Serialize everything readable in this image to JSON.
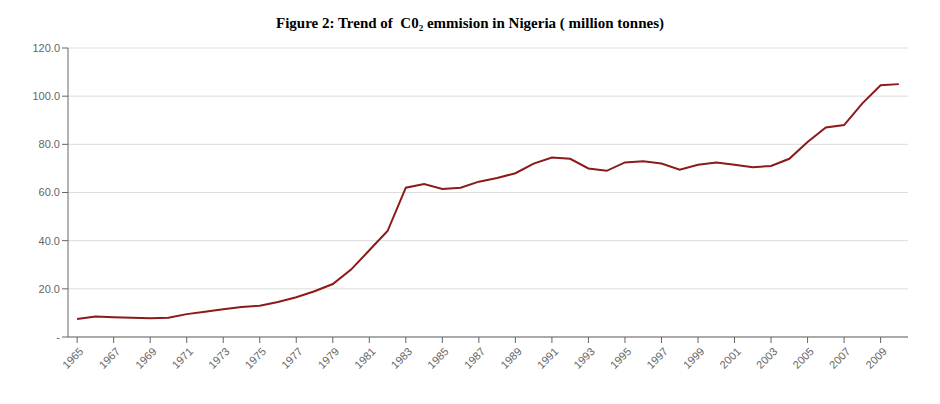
{
  "chart_data": {
    "type": "line",
    "title": "Figure 2: Trend of  C0₂ emmision in Nigeria ( million tonnes)",
    "x": [
      1965,
      1966,
      1967,
      1968,
      1969,
      1970,
      1971,
      1972,
      1973,
      1974,
      1975,
      1976,
      1977,
      1978,
      1979,
      1980,
      1981,
      1982,
      1983,
      1984,
      1985,
      1986,
      1987,
      1988,
      1989,
      1990,
      1991,
      1992,
      1993,
      1994,
      1995,
      1996,
      1997,
      1998,
      1999,
      2000,
      2001,
      2002,
      2003,
      2004,
      2005,
      2006,
      2007,
      2008,
      2009,
      2010
    ],
    "values": [
      7.5,
      8.5,
      8.2,
      8.0,
      7.8,
      8.0,
      9.5,
      10.5,
      11.5,
      12.5,
      13.0,
      14.5,
      16.5,
      19.0,
      22.0,
      28.0,
      36.0,
      44.0,
      62.0,
      63.5,
      61.5,
      62.0,
      64.5,
      66.0,
      68.0,
      72.0,
      74.5,
      74.0,
      70.0,
      69.0,
      72.5,
      73.0,
      72.0,
      69.5,
      71.5,
      72.5,
      71.5,
      70.5,
      71.0,
      74.0,
      81.0,
      87.0,
      88.0,
      97.0,
      104.5,
      105.0
    ],
    "color": "#8B1A1A",
    "xlim": [
      1964.5,
      2010.5
    ],
    "xticks": [
      1965,
      1967,
      1969,
      1971,
      1973,
      1975,
      1977,
      1979,
      1981,
      1983,
      1985,
      1987,
      1989,
      1991,
      1993,
      1995,
      1997,
      1999,
      2001,
      2003,
      2005,
      2007,
      2009
    ],
    "ylim": [
      0,
      120
    ],
    "yticks": [
      {
        "value": 0,
        "label": "-"
      },
      {
        "value": 20,
        "label": "20.0"
      },
      {
        "value": 40,
        "label": "40.0"
      },
      {
        "value": 60,
        "label": "60.0"
      },
      {
        "value": 80,
        "label": "80.0"
      },
      {
        "value": 100,
        "label": "100.0"
      },
      {
        "value": 120,
        "label": "120.0"
      }
    ],
    "grid": true
  }
}
